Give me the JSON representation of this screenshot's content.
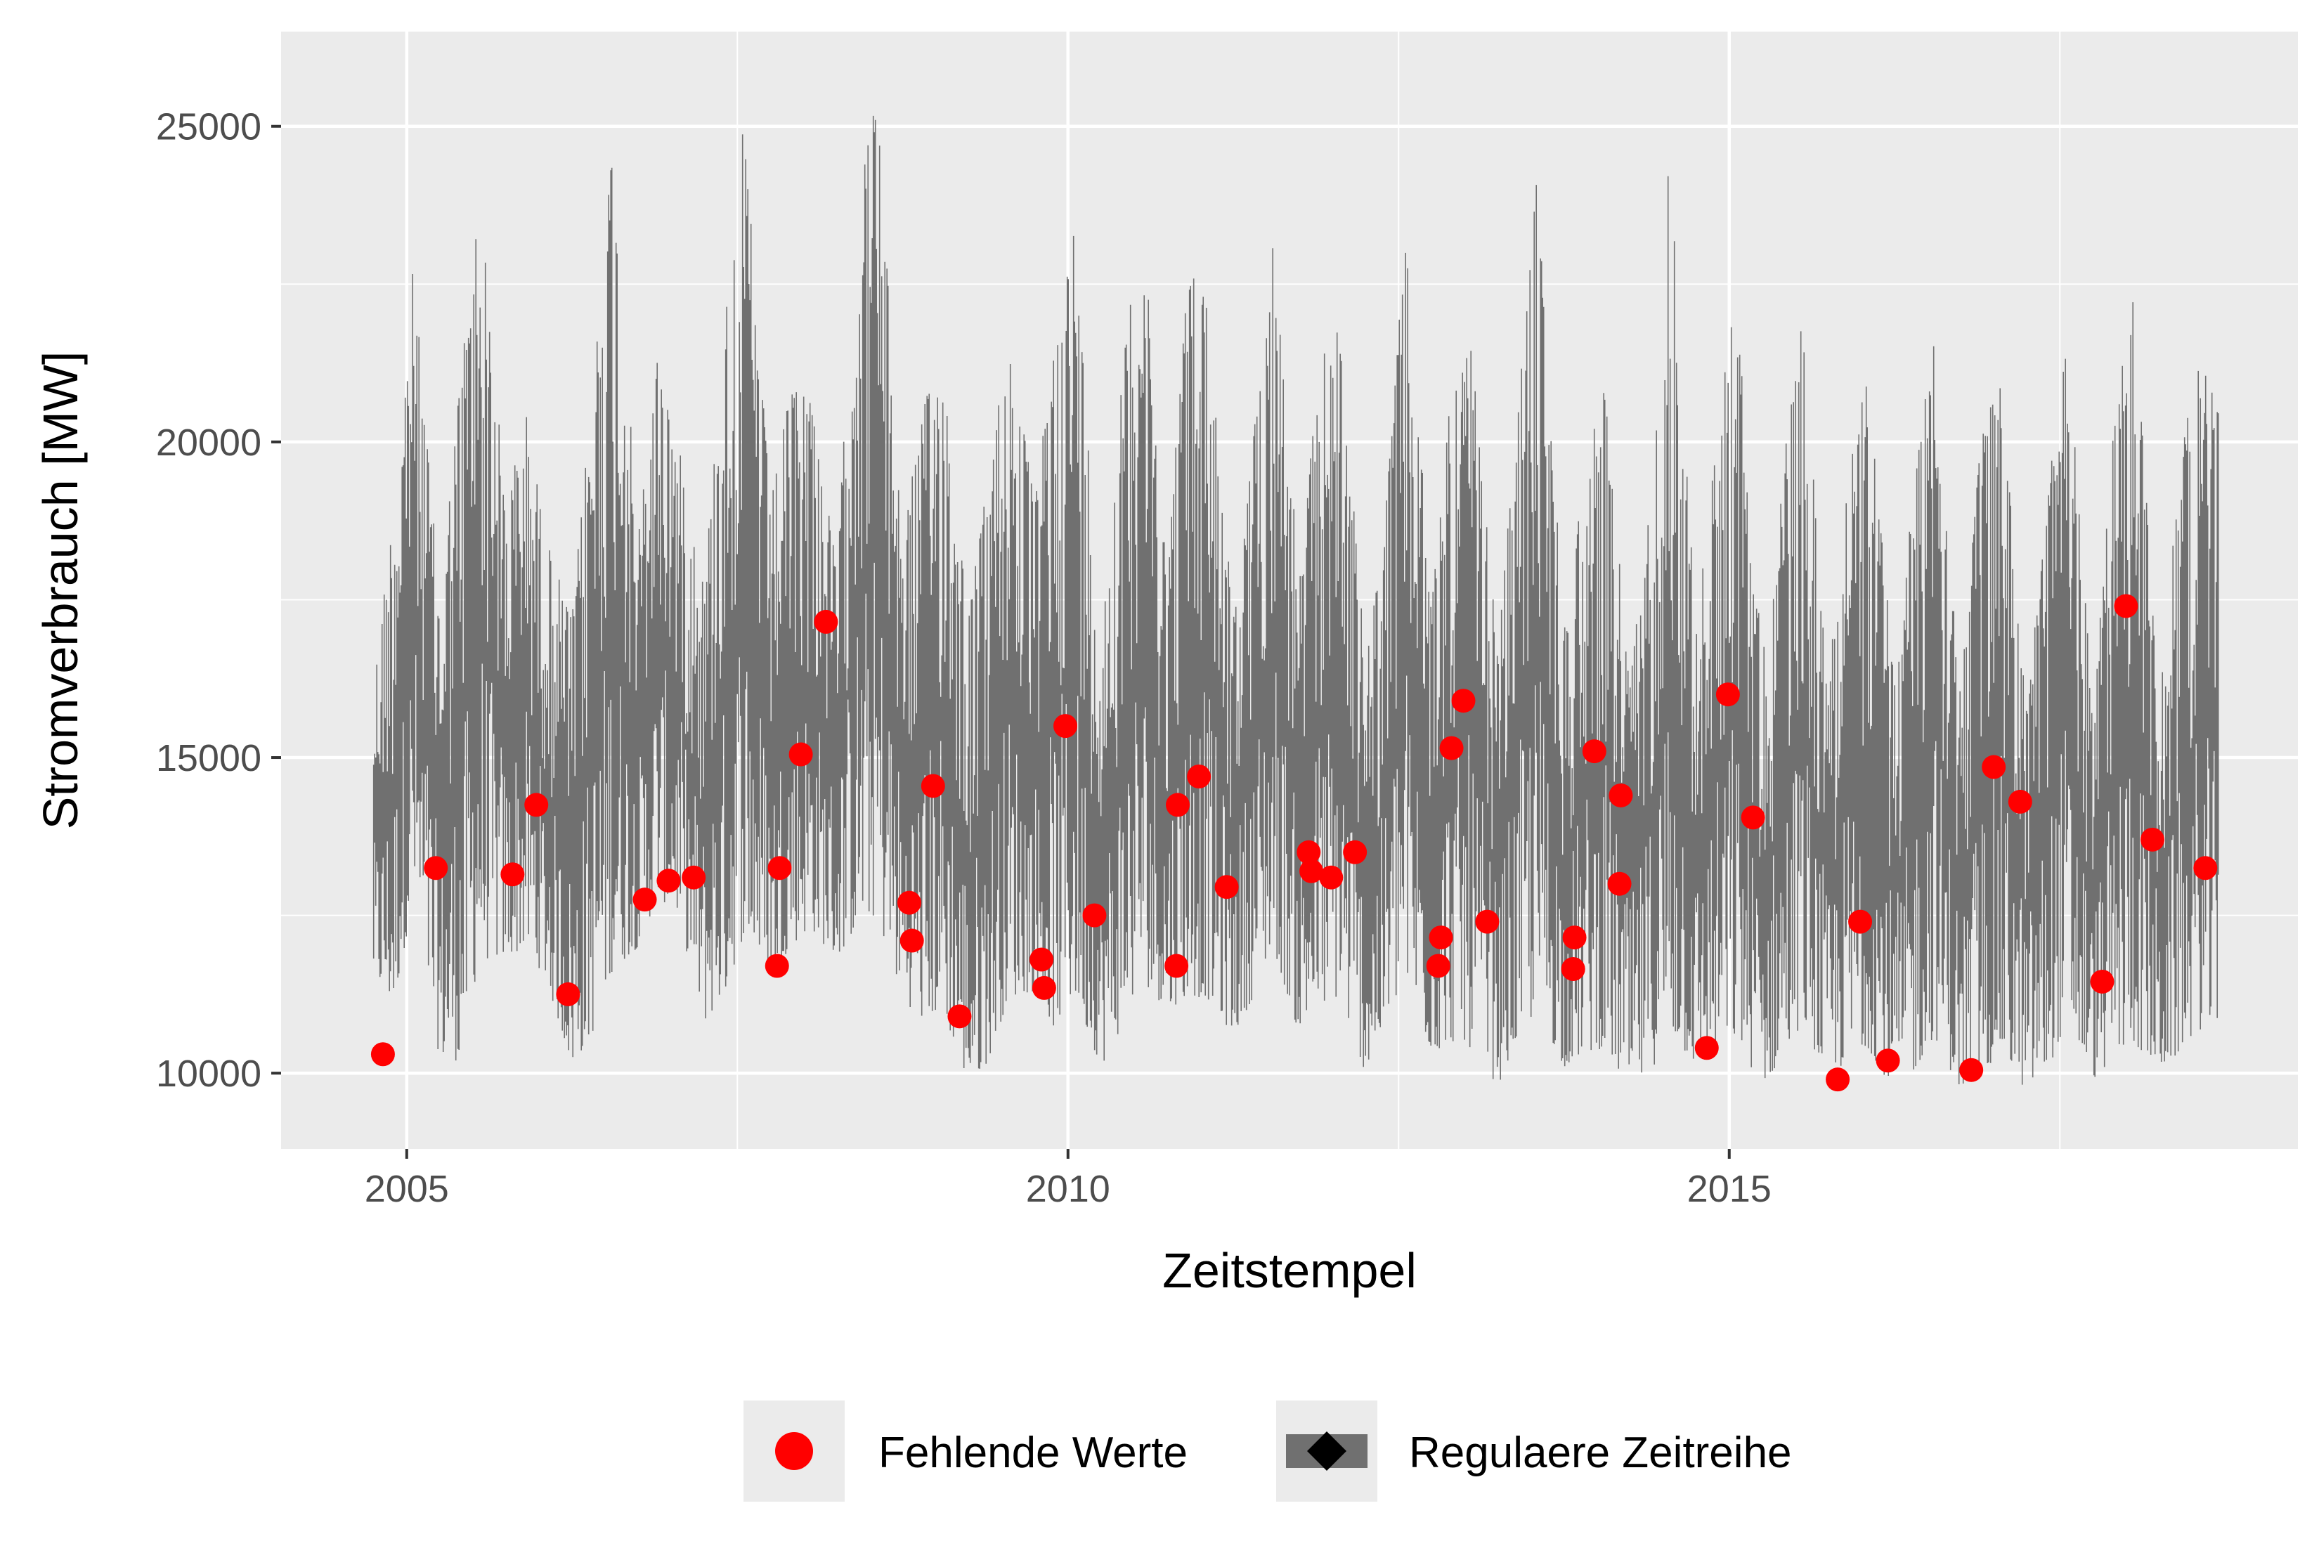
{
  "chart_data": {
    "type": "line",
    "xlabel": "Zeitstempel",
    "ylabel": "Stromverbrauch [MW]",
    "xlim": [
      2004.05,
      2019.3
    ],
    "ylim": [
      8800,
      26500
    ],
    "x_ticks": [
      2005,
      2010,
      2015
    ],
    "y_ticks": [
      10000,
      15000,
      20000,
      25000
    ],
    "grid": true,
    "legend_position": "bottom",
    "colors": {
      "panel": "#EBEBEB",
      "grid": "#FFFFFF",
      "series": "#707070",
      "missing": "#FF0000"
    },
    "legend": [
      {
        "label": "Fehlende Werte",
        "symbol": "point",
        "color": "#FF0000"
      },
      {
        "label": "Regulaere Zeitreihe",
        "symbol": "line",
        "color": "#707070"
      }
    ],
    "series": [
      {
        "name": "Regulaere Zeitreihe",
        "envelope": {
          "x": [
            2004.75,
            2004.9,
            2005.05,
            2005.25,
            2005.4,
            2005.55,
            2005.75,
            2005.9,
            2006.05,
            2006.25,
            2006.4,
            2006.55,
            2006.75,
            2006.9,
            2007.05,
            2007.25,
            2007.4,
            2007.55,
            2007.75,
            2007.9,
            2008.05,
            2008.25,
            2008.4,
            2008.55,
            2008.75,
            2008.9,
            2009.05,
            2009.25,
            2009.4,
            2009.55,
            2009.75,
            2009.9,
            2010.05,
            2010.25,
            2010.4,
            2010.55,
            2010.75,
            2010.9,
            2011.05,
            2011.25,
            2011.4,
            2011.55,
            2011.75,
            2011.9,
            2012.05,
            2012.25,
            2012.4,
            2012.55,
            2012.75,
            2012.9,
            2013.05,
            2013.25,
            2013.4,
            2013.55,
            2013.75,
            2013.9,
            2014.05,
            2014.25,
            2014.4,
            2014.55,
            2014.75,
            2014.9,
            2015.05,
            2015.25,
            2015.4,
            2015.55,
            2015.75,
            2015.9,
            2016.05,
            2016.25,
            2016.4,
            2016.55,
            2016.75,
            2016.9,
            2017.05,
            2017.25,
            2017.4,
            2017.55,
            2017.75,
            2017.9,
            2018.05,
            2018.25,
            2018.4,
            2018.55,
            2018.7
          ],
          "high": [
            16200,
            19000,
            22800,
            17500,
            21000,
            24000,
            19000,
            20500,
            18500,
            17200,
            20800,
            24800,
            18500,
            21500,
            20000,
            17800,
            21800,
            25100,
            19000,
            20800,
            21000,
            18000,
            23500,
            25700,
            18500,
            20500,
            21500,
            17300,
            19500,
            21800,
            19000,
            21700,
            23500,
            16800,
            20800,
            24000,
            18000,
            22700,
            22500,
            17200,
            20000,
            23400,
            17800,
            21200,
            22000,
            16500,
            18800,
            23300,
            17500,
            21000,
            21500,
            16700,
            20500,
            24300,
            17000,
            19500,
            21000,
            16300,
            19000,
            24700,
            17000,
            20000,
            22500,
            16500,
            19500,
            21900,
            16200,
            19800,
            21000,
            16200,
            19500,
            22400,
            16000,
            20000,
            21200,
            15800,
            19000,
            21900,
            15800,
            20000,
            22700,
            16000,
            19500,
            21500,
            20500
          ],
          "low": [
            11500,
            11000,
            12800,
            10200,
            10200,
            11800,
            11800,
            12000,
            11500,
            10100,
            10600,
            11600,
            12000,
            12800,
            12500,
            10800,
            11200,
            12200,
            11500,
            12000,
            12300,
            11800,
            12300,
            12500,
            11200,
            10800,
            11000,
            9800,
            10200,
            11200,
            11300,
            10700,
            11200,
            10100,
            10700,
            11500,
            11000,
            11200,
            11200,
            10600,
            11200,
            12000,
            10600,
            11000,
            11200,
            10000,
            10700,
            11500,
            10300,
            10500,
            10400,
            9800,
            10500,
            11000,
            10100,
            10300,
            10400,
            9700,
            10000,
            10600,
            10100,
            10300,
            10500,
            9800,
            10200,
            10800,
            9900,
            10200,
            10400,
            9700,
            10000,
            10600,
            9700,
            10000,
            10300,
            9700,
            10000,
            10800,
            9900,
            10200,
            10500,
            10000,
            10300,
            10700,
            10600
          ]
        }
      },
      {
        "name": "Fehlende Werte",
        "points": [
          {
            "x": 2004.82,
            "y": 10300
          },
          {
            "x": 2005.22,
            "y": 13250
          },
          {
            "x": 2005.8,
            "y": 13150
          },
          {
            "x": 2005.98,
            "y": 14250
          },
          {
            "x": 2006.22,
            "y": 11250
          },
          {
            "x": 2006.8,
            "y": 12750
          },
          {
            "x": 2006.98,
            "y": 13050
          },
          {
            "x": 2007.17,
            "y": 13100
          },
          {
            "x": 2007.8,
            "y": 11700
          },
          {
            "x": 2007.82,
            "y": 13250
          },
          {
            "x": 2007.98,
            "y": 15050
          },
          {
            "x": 2008.17,
            "y": 17150
          },
          {
            "x": 2008.8,
            "y": 12700
          },
          {
            "x": 2008.82,
            "y": 12100
          },
          {
            "x": 2008.98,
            "y": 14550
          },
          {
            "x": 2009.18,
            "y": 10900
          },
          {
            "x": 2009.8,
            "y": 11800
          },
          {
            "x": 2009.82,
            "y": 11350
          },
          {
            "x": 2009.98,
            "y": 15500
          },
          {
            "x": 2010.2,
            "y": 12500
          },
          {
            "x": 2010.82,
            "y": 11700
          },
          {
            "x": 2010.83,
            "y": 14250
          },
          {
            "x": 2010.99,
            "y": 14700
          },
          {
            "x": 2011.2,
            "y": 12950
          },
          {
            "x": 2011.82,
            "y": 13500
          },
          {
            "x": 2011.84,
            "y": 13200
          },
          {
            "x": 2011.99,
            "y": 13100
          },
          {
            "x": 2012.17,
            "y": 13500
          },
          {
            "x": 2012.8,
            "y": 11700
          },
          {
            "x": 2012.82,
            "y": 12150
          },
          {
            "x": 2012.9,
            "y": 15150
          },
          {
            "x": 2012.99,
            "y": 15900
          },
          {
            "x": 2013.17,
            "y": 12400
          },
          {
            "x": 2013.82,
            "y": 11650
          },
          {
            "x": 2013.83,
            "y": 12150
          },
          {
            "x": 2013.98,
            "y": 15100
          },
          {
            "x": 2014.17,
            "y": 13000
          },
          {
            "x": 2014.18,
            "y": 14400
          },
          {
            "x": 2014.83,
            "y": 10400
          },
          {
            "x": 2014.99,
            "y": 16000
          },
          {
            "x": 2015.18,
            "y": 14050
          },
          {
            "x": 2015.82,
            "y": 9900
          },
          {
            "x": 2015.99,
            "y": 12400
          },
          {
            "x": 2016.2,
            "y": 10200
          },
          {
            "x": 2016.83,
            "y": 10050
          },
          {
            "x": 2017.0,
            "y": 14850
          },
          {
            "x": 2017.2,
            "y": 14300
          },
          {
            "x": 2017.82,
            "y": 11450
          },
          {
            "x": 2018.0,
            "y": 17400
          },
          {
            "x": 2018.2,
            "y": 13700
          },
          {
            "x": 2018.6,
            "y": 13250
          }
        ]
      }
    ]
  }
}
